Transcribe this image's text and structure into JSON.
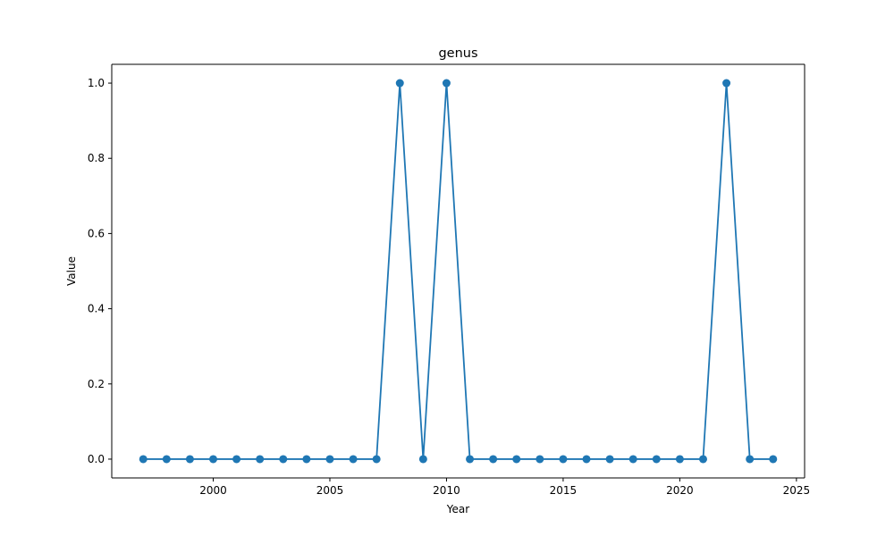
{
  "chart_data": {
    "type": "line",
    "title": "genus",
    "xlabel": "Year",
    "ylabel": "Value",
    "xlim": [
      1995.65,
      2025.35
    ],
    "ylim": [
      -0.05,
      1.05
    ],
    "xticks": [
      2000,
      2005,
      2010,
      2015,
      2020,
      2025
    ],
    "yticks": [
      0.0,
      0.2,
      0.4,
      0.6,
      0.8,
      1.0
    ],
    "xtick_labels": [
      "2000",
      "2005",
      "2010",
      "2015",
      "2020",
      "2025"
    ],
    "ytick_labels": [
      "0.0",
      "0.2",
      "0.4",
      "0.6",
      "0.8",
      "1.0"
    ],
    "grid": false,
    "line_color": "#1f77b4",
    "series": [
      {
        "x": [
          1997,
          1998,
          1999,
          2000,
          2001,
          2002,
          2003,
          2004,
          2005,
          2006,
          2007,
          2008,
          2009,
          2010,
          2011,
          2012,
          2013,
          2014,
          2015,
          2016,
          2017,
          2018,
          2019,
          2020,
          2021,
          2022,
          2023,
          2024
        ],
        "values": [
          0,
          0,
          0,
          0,
          0,
          0,
          0,
          0,
          0,
          0,
          0,
          1,
          0,
          1,
          0,
          0,
          0,
          0,
          0,
          0,
          0,
          0,
          0,
          0,
          0,
          1,
          0,
          0
        ]
      }
    ]
  }
}
